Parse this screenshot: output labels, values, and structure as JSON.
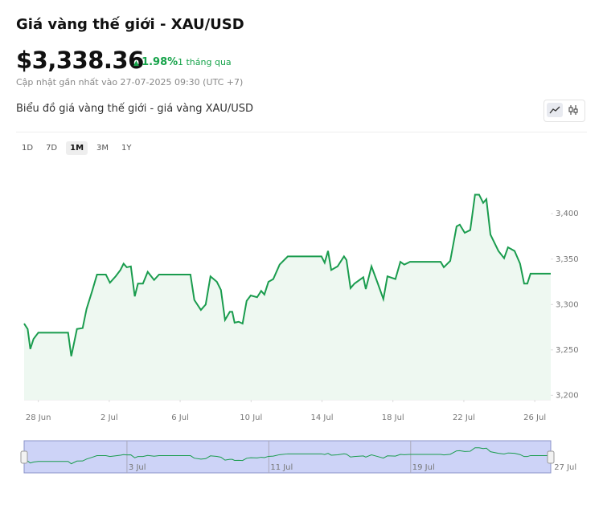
{
  "header": {
    "title": "Giá vàng thế giới - XAU/USD",
    "price": "$3,338.36",
    "change": "1.98%",
    "period": "1 tháng qua",
    "updated": "Cập nhật gần nhất vào 27-07-2025 09:30 (UTC +7)",
    "section_title": "Biểu đồ giá vàng thế giới - giá vàng XAU/USD"
  },
  "range_buttons": [
    "1D",
    "7D",
    "1M",
    "3M",
    "1Y"
  ],
  "active_range": "1M",
  "chart_data": {
    "type": "area",
    "color": "#1a9c4e",
    "fill": "#eef8f1",
    "x": [
      -0.8,
      -0.6,
      -0.45,
      -0.27,
      0,
      1.68,
      1.86,
      2.18,
      2.5,
      2.72,
      3.04,
      3.31,
      3.81,
      4.04,
      4.36,
      4.63,
      4.81,
      4.99,
      5.22,
      5.44,
      5.62,
      5.9,
      6.17,
      6.53,
      6.81,
      8.58,
      8.8,
      9.17,
      9.44,
      9.71,
      10.07,
      10.3,
      10.53,
      10.8,
      10.94,
      11.07,
      11.3,
      11.52,
      11.75,
      11.98,
      12.34,
      12.57,
      12.75,
      12.98,
      13.25,
      13.61,
      14.07,
      15.97,
      16.15,
      16.34,
      16.52,
      16.88,
      17.24,
      17.38,
      17.61,
      17.83,
      18.33,
      18.47,
      18.79,
      19.15,
      19.46,
      19.69,
      20.14,
      20.42,
      20.64,
      20.96,
      22.69,
      22.87,
      23.23,
      23.59,
      23.77,
      24.05,
      24.36,
      24.63,
      24.86,
      25.09,
      25.27,
      25.5,
      25.95,
      26.27,
      26.49,
      26.86,
      27.17,
      27.4,
      27.58,
      27.76,
      28.9
    ],
    "values": [
      3279,
      3273,
      3251,
      3262,
      3269,
      3269,
      3243,
      3273,
      3274,
      3295,
      3315,
      3333,
      3333,
      3324,
      3331,
      3338,
      3345,
      3341,
      3342,
      3309,
      3323,
      3323,
      3336,
      3327,
      3333,
      3333,
      3305,
      3294,
      3300,
      3331,
      3325,
      3316,
      3283,
      3292,
      3292,
      3280,
      3281,
      3279,
      3304,
      3310,
      3308,
      3315,
      3311,
      3325,
      3328,
      3344,
      3353,
      3353,
      3346,
      3359,
      3338,
      3342,
      3353,
      3349,
      3318,
      3323,
      3330,
      3317,
      3342,
      3323,
      3306,
      3331,
      3328,
      3347,
      3344,
      3347,
      3347,
      3341,
      3348,
      3386,
      3388,
      3379,
      3382,
      3421,
      3421,
      3412,
      3416,
      3377,
      3359,
      3351,
      3363,
      3359,
      3345,
      3323,
      3323,
      3334,
      3334
    ],
    "xlim": [
      -0.8,
      28.9
    ],
    "xticks": [
      {
        "value": 0,
        "label": "28 Jun"
      },
      {
        "value": 4,
        "label": "2 Jul"
      },
      {
        "value": 8,
        "label": "6 Jul"
      },
      {
        "value": 12,
        "label": "10 Jul"
      },
      {
        "value": 16,
        "label": "14 Jul"
      },
      {
        "value": 20,
        "label": "18 Jul"
      },
      {
        "value": 24,
        "label": "22 Jul"
      },
      {
        "value": 28,
        "label": "26 Jul"
      }
    ],
    "ylim": [
      3195,
      3463
    ],
    "yticks": [
      {
        "value": 3200,
        "label": "3,200"
      },
      {
        "value": 3250,
        "label": "3,250"
      },
      {
        "value": 3300,
        "label": "3,300"
      },
      {
        "value": 3350,
        "label": "3,350"
      },
      {
        "value": 3400,
        "label": "3,400"
      }
    ],
    "navigator_xticks": [
      {
        "value": 5,
        "label": "3 Jul"
      },
      {
        "value": 13,
        "label": "11 Jul"
      },
      {
        "value": 21,
        "label": "19 Jul"
      },
      {
        "value": 29,
        "label": "27 Jul"
      }
    ]
  }
}
